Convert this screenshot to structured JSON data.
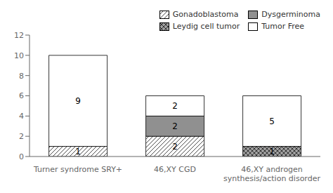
{
  "chart_data": {
    "type": "bar",
    "stacked": true,
    "data_labels": true,
    "grid": false,
    "legend": "upper right",
    "categories": [
      "Turner syndrome SRY+",
      "46,XY CGD",
      "46,XY androgen\nsynthesis/action disorder"
    ],
    "series": [
      {
        "name": "Gonadoblastoma",
        "color": "#ffffff",
        "values": [
          1,
          2,
          0
        ]
      },
      {
        "name": "Dysgerminoma",
        "color": "#909090",
        "values": [
          0,
          2,
          0
        ]
      },
      {
        "name": "Leydig cell tumor",
        "color": "#a0a0a0",
        "values": [
          0,
          0,
          1
        ]
      },
      {
        "name": "Tumor Free",
        "color": "#ffffff",
        "values": [
          9,
          2,
          5
        ]
      }
    ],
    "ylim": [
      0,
      12
    ],
    "yticks": [
      0,
      2,
      4,
      6,
      8,
      10,
      12
    ]
  }
}
